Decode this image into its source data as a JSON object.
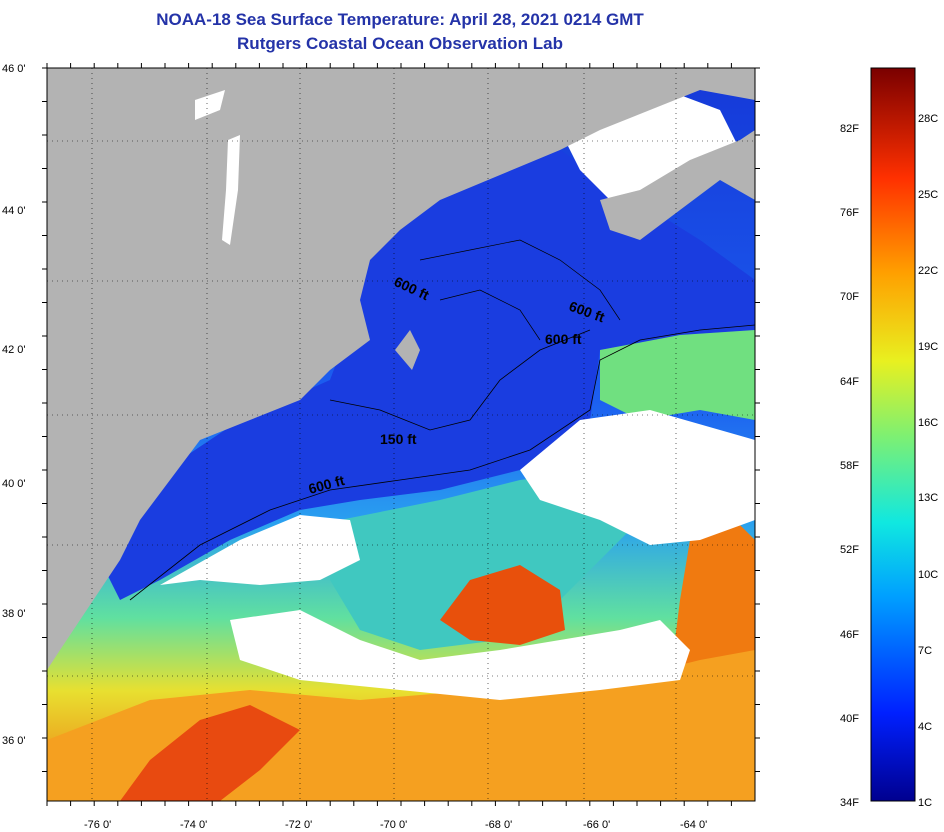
{
  "title": {
    "line1": "NOAA-18 Sea Surface Temperature:  April 28, 2021 0214 GMT",
    "line2": "Rutgers Coastal Ocean Observation Lab"
  },
  "map": {
    "lat_labels": [
      "46 0'",
      "44 0'",
      "42 0'",
      "40 0'",
      "38 0'",
      "36 0'"
    ],
    "lat_values": [
      46,
      44,
      42,
      40,
      38,
      36
    ],
    "lon_labels": [
      "-76 0'",
      "-74 0'",
      "-72 0'",
      "-70 0'",
      "-68 0'",
      "-66 0'",
      "-64 0'"
    ],
    "lon_values": [
      -76,
      -74,
      -72,
      -70,
      -68,
      -66,
      -64
    ],
    "lon_range": [
      -77,
      -63
    ],
    "lat_range": [
      35,
      46
    ],
    "contour_labels": [
      "600 ft",
      "600 ft",
      "600 ft",
      "150 ft",
      "600 ft"
    ],
    "colors": {
      "land": "#b3b3b3",
      "cloud": "#ffffff",
      "cold_water": "#1a3de0",
      "warm_water": "#e8400c"
    }
  },
  "colorbar": {
    "fahrenheit_labels": [
      "82F",
      "76F",
      "70F",
      "64F",
      "58F",
      "52F",
      "46F",
      "40F",
      "34F"
    ],
    "celsius_labels": [
      "28C",
      "25C",
      "22C",
      "19C",
      "16C",
      "13C",
      "10C",
      "7C",
      "4C",
      "1C"
    ]
  }
}
